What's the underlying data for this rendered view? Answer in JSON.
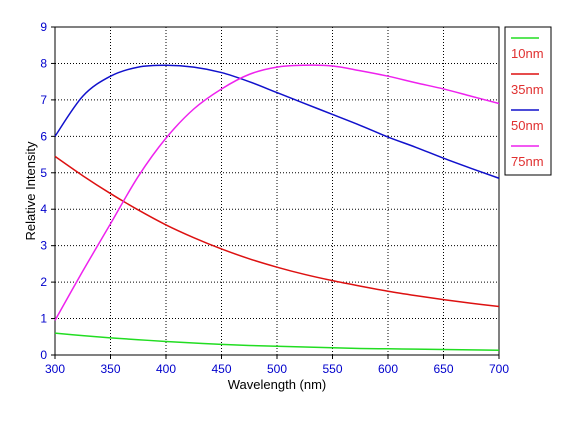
{
  "chart_data": {
    "type": "line",
    "title": "",
    "xlabel": "Wavelength (nm)",
    "ylabel": "Relative Intensity",
    "xlim": [
      300,
      700
    ],
    "ylim": [
      0,
      9
    ],
    "x_ticks": [
      "300",
      "350",
      "400",
      "450",
      "500",
      "550",
      "600",
      "650",
      "700"
    ],
    "y_ticks": [
      "0",
      "1",
      "2",
      "3",
      "4",
      "5",
      "6",
      "7",
      "8",
      "9"
    ],
    "grid": true,
    "legend_position": "right",
    "tick_label_color": "#0000cc",
    "legend_text_color": "#e03030",
    "series": [
      {
        "name": "10nm",
        "color": "#22dd22",
        "x": [
          300,
          325,
          350,
          375,
          400,
          425,
          450,
          475,
          500,
          525,
          550,
          575,
          600,
          625,
          650,
          675,
          700
        ],
        "y": [
          0.6,
          0.53,
          0.47,
          0.42,
          0.37,
          0.33,
          0.29,
          0.26,
          0.24,
          0.22,
          0.2,
          0.18,
          0.17,
          0.16,
          0.15,
          0.14,
          0.13
        ]
      },
      {
        "name": "35nm",
        "color": "#dd1111",
        "x": [
          300,
          325,
          350,
          375,
          400,
          425,
          450,
          475,
          500,
          525,
          550,
          575,
          600,
          625,
          650,
          675,
          700
        ],
        "y": [
          5.45,
          4.92,
          4.43,
          3.98,
          3.57,
          3.22,
          2.91,
          2.64,
          2.41,
          2.21,
          2.04,
          1.89,
          1.75,
          1.63,
          1.52,
          1.42,
          1.33
        ]
      },
      {
        "name": "50nm",
        "color": "#1111cc",
        "x": [
          300,
          325,
          350,
          375,
          400,
          425,
          450,
          475,
          500,
          525,
          550,
          575,
          600,
          625,
          650,
          675,
          700
        ],
        "y": [
          6.0,
          7.1,
          7.65,
          7.9,
          7.95,
          7.9,
          7.75,
          7.5,
          7.2,
          6.9,
          6.6,
          6.3,
          5.98,
          5.7,
          5.4,
          5.12,
          4.85
        ]
      },
      {
        "name": "75nm",
        "color": "#ee22ee",
        "x": [
          300,
          325,
          350,
          375,
          400,
          425,
          450,
          475,
          500,
          525,
          550,
          575,
          600,
          625,
          650,
          675,
          700
        ],
        "y": [
          0.95,
          2.3,
          3.6,
          4.9,
          5.95,
          6.75,
          7.3,
          7.7,
          7.9,
          7.95,
          7.93,
          7.8,
          7.65,
          7.47,
          7.3,
          7.1,
          6.9
        ]
      }
    ]
  }
}
